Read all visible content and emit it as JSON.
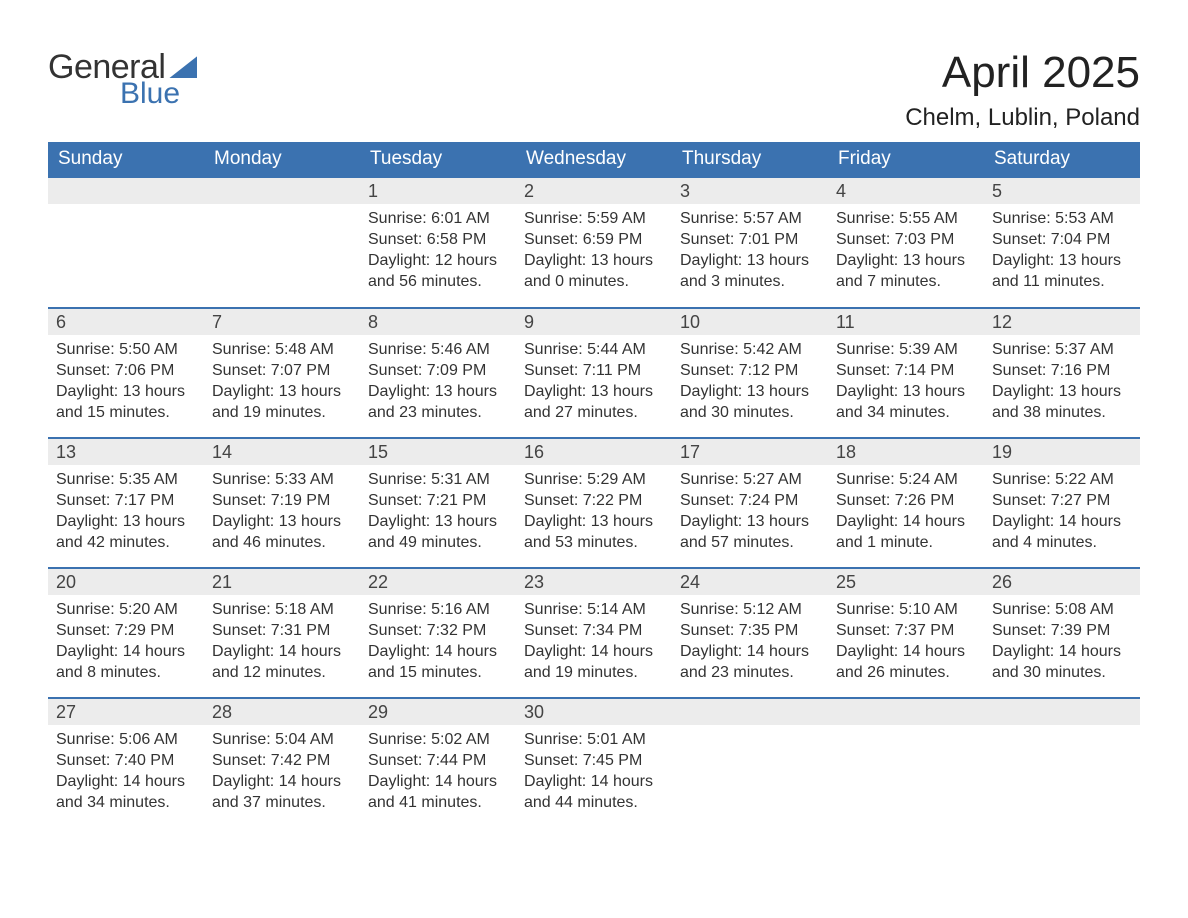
{
  "logo": {
    "text_a": "General",
    "text_b": "Blue"
  },
  "title": "April 2025",
  "location": "Chelm, Lublin, Poland",
  "colors": {
    "header_bg": "#3b72b0",
    "header_fg": "#ffffff",
    "daynum_bg": "#ececec",
    "row_divider": "#3b72b0",
    "text": "#333333",
    "logo_blue": "#3b72b0"
  },
  "columns": [
    "Sunday",
    "Monday",
    "Tuesday",
    "Wednesday",
    "Thursday",
    "Friday",
    "Saturday"
  ],
  "weeks": [
    [
      null,
      null,
      {
        "d": "1",
        "sr": "6:01 AM",
        "ss": "6:58 PM",
        "dl": "12 hours and 56 minutes."
      },
      {
        "d": "2",
        "sr": "5:59 AM",
        "ss": "6:59 PM",
        "dl": "13 hours and 0 minutes."
      },
      {
        "d": "3",
        "sr": "5:57 AM",
        "ss": "7:01 PM",
        "dl": "13 hours and 3 minutes."
      },
      {
        "d": "4",
        "sr": "5:55 AM",
        "ss": "7:03 PM",
        "dl": "13 hours and 7 minutes."
      },
      {
        "d": "5",
        "sr": "5:53 AM",
        "ss": "7:04 PM",
        "dl": "13 hours and 11 minutes."
      }
    ],
    [
      {
        "d": "6",
        "sr": "5:50 AM",
        "ss": "7:06 PM",
        "dl": "13 hours and 15 minutes."
      },
      {
        "d": "7",
        "sr": "5:48 AM",
        "ss": "7:07 PM",
        "dl": "13 hours and 19 minutes."
      },
      {
        "d": "8",
        "sr": "5:46 AM",
        "ss": "7:09 PM",
        "dl": "13 hours and 23 minutes."
      },
      {
        "d": "9",
        "sr": "5:44 AM",
        "ss": "7:11 PM",
        "dl": "13 hours and 27 minutes."
      },
      {
        "d": "10",
        "sr": "5:42 AM",
        "ss": "7:12 PM",
        "dl": "13 hours and 30 minutes."
      },
      {
        "d": "11",
        "sr": "5:39 AM",
        "ss": "7:14 PM",
        "dl": "13 hours and 34 minutes."
      },
      {
        "d": "12",
        "sr": "5:37 AM",
        "ss": "7:16 PM",
        "dl": "13 hours and 38 minutes."
      }
    ],
    [
      {
        "d": "13",
        "sr": "5:35 AM",
        "ss": "7:17 PM",
        "dl": "13 hours and 42 minutes."
      },
      {
        "d": "14",
        "sr": "5:33 AM",
        "ss": "7:19 PM",
        "dl": "13 hours and 46 minutes."
      },
      {
        "d": "15",
        "sr": "5:31 AM",
        "ss": "7:21 PM",
        "dl": "13 hours and 49 minutes."
      },
      {
        "d": "16",
        "sr": "5:29 AM",
        "ss": "7:22 PM",
        "dl": "13 hours and 53 minutes."
      },
      {
        "d": "17",
        "sr": "5:27 AM",
        "ss": "7:24 PM",
        "dl": "13 hours and 57 minutes."
      },
      {
        "d": "18",
        "sr": "5:24 AM",
        "ss": "7:26 PM",
        "dl": "14 hours and 1 minute."
      },
      {
        "d": "19",
        "sr": "5:22 AM",
        "ss": "7:27 PM",
        "dl": "14 hours and 4 minutes."
      }
    ],
    [
      {
        "d": "20",
        "sr": "5:20 AM",
        "ss": "7:29 PM",
        "dl": "14 hours and 8 minutes."
      },
      {
        "d": "21",
        "sr": "5:18 AM",
        "ss": "7:31 PM",
        "dl": "14 hours and 12 minutes."
      },
      {
        "d": "22",
        "sr": "5:16 AM",
        "ss": "7:32 PM",
        "dl": "14 hours and 15 minutes."
      },
      {
        "d": "23",
        "sr": "5:14 AM",
        "ss": "7:34 PM",
        "dl": "14 hours and 19 minutes."
      },
      {
        "d": "24",
        "sr": "5:12 AM",
        "ss": "7:35 PM",
        "dl": "14 hours and 23 minutes."
      },
      {
        "d": "25",
        "sr": "5:10 AM",
        "ss": "7:37 PM",
        "dl": "14 hours and 26 minutes."
      },
      {
        "d": "26",
        "sr": "5:08 AM",
        "ss": "7:39 PM",
        "dl": "14 hours and 30 minutes."
      }
    ],
    [
      {
        "d": "27",
        "sr": "5:06 AM",
        "ss": "7:40 PM",
        "dl": "14 hours and 34 minutes."
      },
      {
        "d": "28",
        "sr": "5:04 AM",
        "ss": "7:42 PM",
        "dl": "14 hours and 37 minutes."
      },
      {
        "d": "29",
        "sr": "5:02 AM",
        "ss": "7:44 PM",
        "dl": "14 hours and 41 minutes."
      },
      {
        "d": "30",
        "sr": "5:01 AM",
        "ss": "7:45 PM",
        "dl": "14 hours and 44 minutes."
      },
      null,
      null,
      null
    ]
  ],
  "labels": {
    "sunrise": "Sunrise: ",
    "sunset": "Sunset: ",
    "daylight": "Daylight: "
  }
}
